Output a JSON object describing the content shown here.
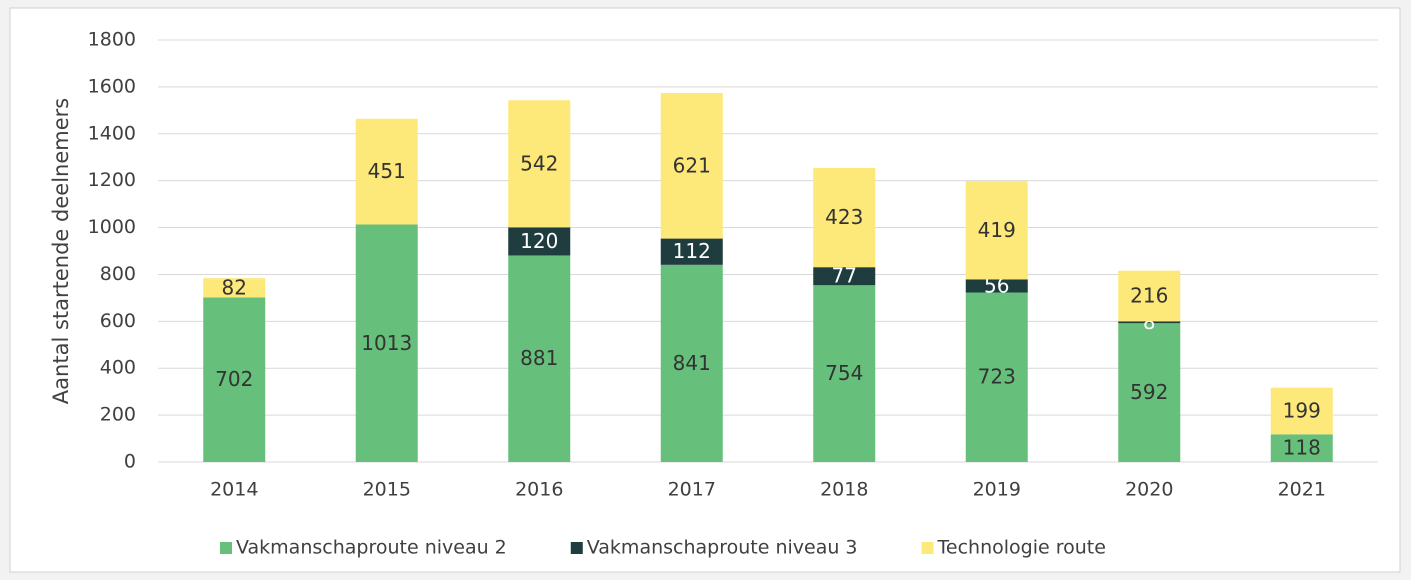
{
  "chart_data": {
    "type": "stacked-bar",
    "y_label": "Aantal startende deelnemers",
    "categories": [
      "2014",
      "2015",
      "2016",
      "2017",
      "2018",
      "2019",
      "2020",
      "2021"
    ],
    "series": [
      {
        "name": "Vakmanschaproute niveau 2",
        "color": "#66bf7a",
        "label_color": "#333333",
        "values": [
          702,
          1013,
          881,
          841,
          754,
          723,
          592,
          118
        ]
      },
      {
        "name": "Vakmanschaproute niveau 3",
        "color": "#1f3d3f",
        "label_color": "#ffffff",
        "values": [
          null,
          null,
          120,
          112,
          77,
          56,
          8,
          null
        ]
      },
      {
        "name": "Technologie route",
        "color": "#fde87a",
        "label_color": "#333333",
        "values": [
          82,
          451,
          542,
          621,
          423,
          419,
          216,
          199
        ]
      }
    ],
    "ylim": [
      0,
      1800
    ],
    "yticks": [
      0,
      200,
      400,
      600,
      800,
      1000,
      1200,
      1400,
      1600,
      1800
    ],
    "grid": true,
    "legend": "bottom"
  }
}
